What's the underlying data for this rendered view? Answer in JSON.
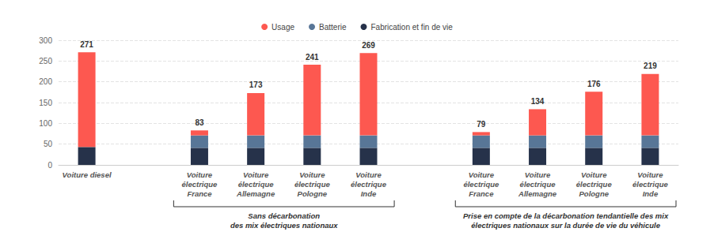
{
  "chart_data": {
    "type": "bar",
    "stacked": true,
    "legend": "top",
    "grid": true,
    "categories": [
      "Voiture diesel",
      null,
      "Voiture\nélectrique\nFrance",
      "Voiture\nélectrique\nAllemagne",
      "Voiture\nélectrique\nPologne",
      "Voiture\nélectrique\nInde",
      null,
      "Voiture\nélectrique\nFrance",
      "Voiture\nélectrique\nAllemagne",
      "Voiture\nélectrique\nPologne",
      "Voiture\nélectrique\nInde"
    ],
    "series": [
      {
        "name": "Fabrication et fin de vie",
        "color": "#26324a",
        "values": [
          43,
          null,
          41,
          41,
          41,
          41,
          null,
          41,
          41,
          41,
          41
        ]
      },
      {
        "name": "Batterie",
        "color": "#587697",
        "values": [
          0,
          null,
          30,
          30,
          30,
          30,
          null,
          30,
          30,
          30,
          30
        ]
      },
      {
        "name": "Usage",
        "color": "#fd5850",
        "values": [
          228,
          null,
          12,
          102,
          170,
          198,
          null,
          8,
          63,
          105,
          148
        ]
      }
    ],
    "totals": [
      271,
      null,
      83,
      173,
      241,
      269,
      null,
      79,
      134,
      176,
      219
    ],
    "annotations": [
      "Sans décarbonation\ndes mix électriques nationaux",
      "Prise en compte de la décarbonation tendantielle des mix\nélectriques nationaux sur la durée de vie du véhicule"
    ],
    "ylim": [
      0,
      300
    ],
    "yticks": [
      0,
      50,
      100,
      150,
      200,
      250,
      300
    ]
  }
}
